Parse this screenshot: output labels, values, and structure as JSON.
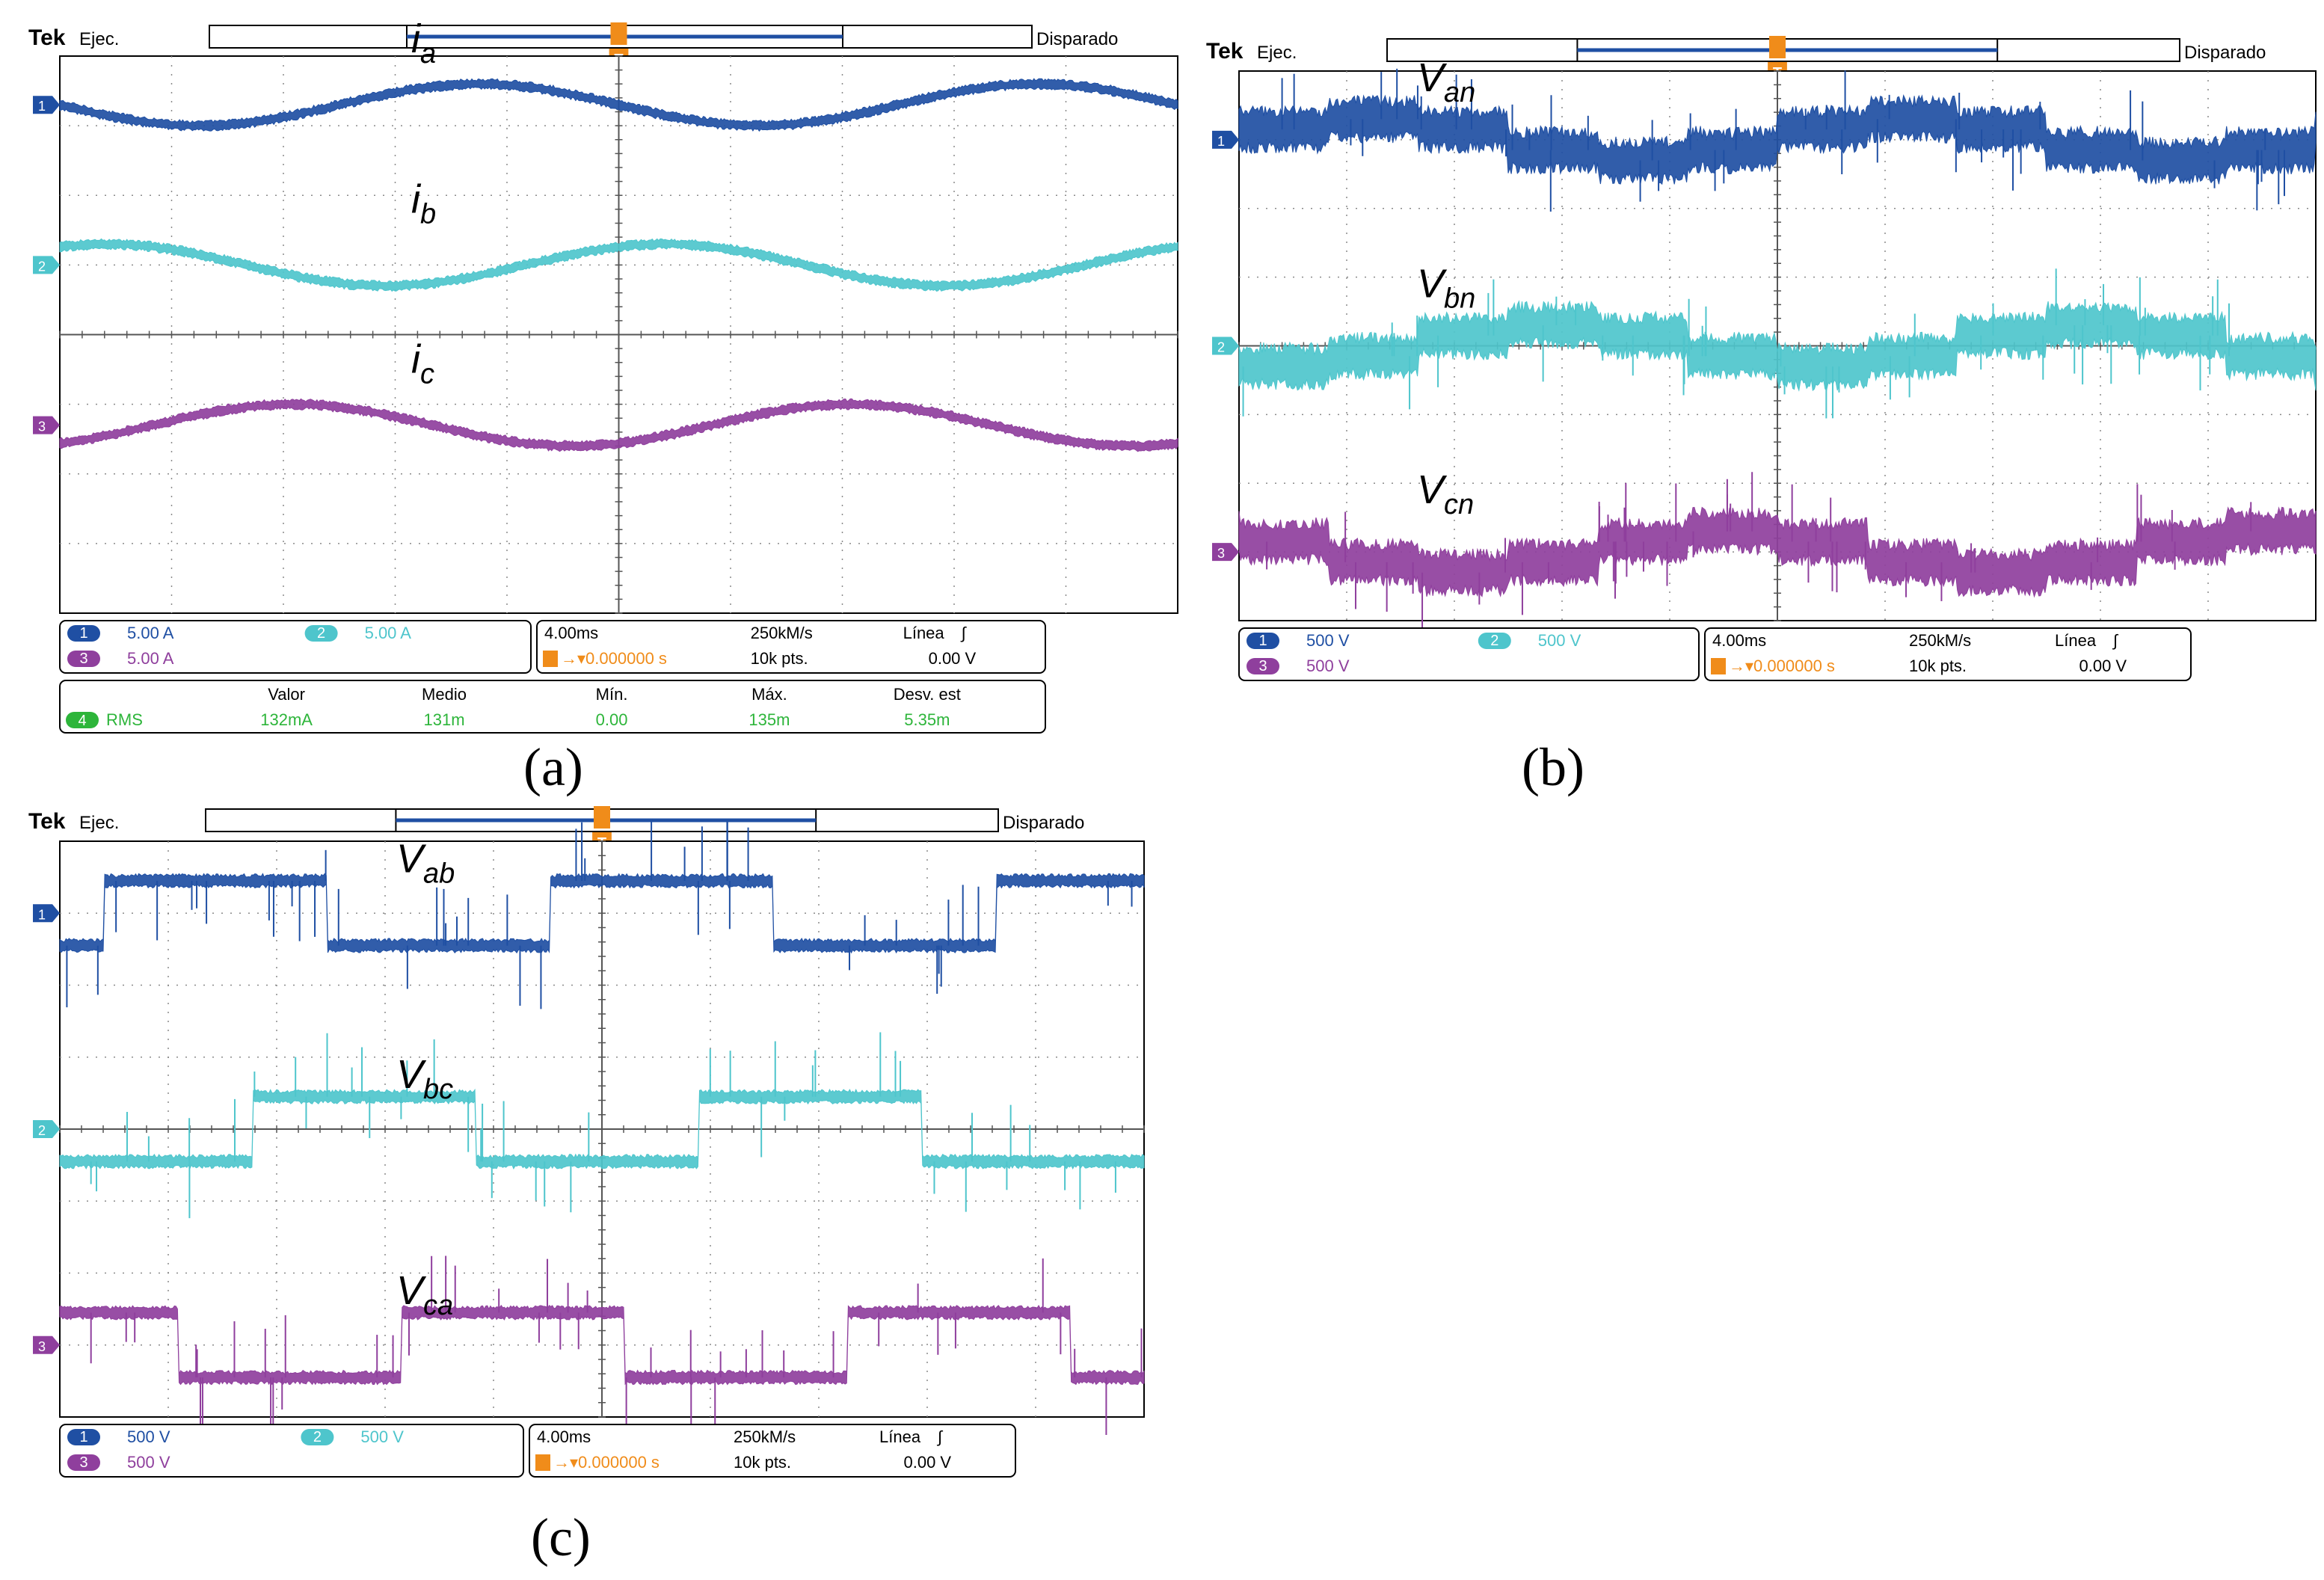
{
  "figure": {
    "captions": [
      "(a)",
      "(b)",
      "(c)"
    ]
  },
  "colors": {
    "ch1": "#1f4fa3",
    "ch2": "#4ec5cc",
    "ch3": "#8f3f9d",
    "ch4": "#2db53a",
    "trigger": "#f08c1a",
    "grid": "#8a8a8a",
    "frame": "#000000"
  },
  "chart_data": [
    {
      "id": "a",
      "type": "line",
      "title": "Tek Ejec.",
      "brand": "Tek",
      "run_state": "Ejec.",
      "trigger_state": "Disparado",
      "trigger_marker": "T",
      "grid": true,
      "divisions": {
        "x": 10,
        "y": 8
      },
      "series": [
        {
          "channel": "1",
          "name": "i_a",
          "label_main": "i",
          "label_sub": "a",
          "scale": "5.00 A",
          "shape": "sine",
          "cycles": 2.0,
          "phase_deg": 180,
          "amplitude_div": 0.3,
          "offset_div": 3.3,
          "noise_div": 0.08
        },
        {
          "channel": "2",
          "name": "i_b",
          "label_main": "i",
          "label_sub": "b",
          "scale": "5.00 A",
          "shape": "sine",
          "cycles": 2.0,
          "phase_deg": 60,
          "amplitude_div": 0.3,
          "offset_div": 1.0,
          "noise_div": 0.08
        },
        {
          "channel": "3",
          "name": "i_c",
          "label_main": "i",
          "label_sub": "c",
          "scale": "5.00 A",
          "shape": "sine",
          "cycles": 2.0,
          "phase_deg": -60,
          "amplitude_div": 0.3,
          "offset_div": -1.3,
          "noise_div": 0.08
        }
      ],
      "readout": {
        "channels": [
          {
            "num": "1",
            "value": "5.00 A"
          },
          {
            "num": "2",
            "value": "5.00 A"
          },
          {
            "num": "3",
            "value": "5.00 A"
          }
        ],
        "timebase": "4.00ms",
        "sample_rate": "250kM/s",
        "trigger_source": "Línea",
        "trigger_slope": "∫",
        "trigger_time": "0.000000 s",
        "record_length": "10k pts.",
        "trigger_level": "0.00 V"
      },
      "measurement": {
        "channel": "4",
        "type": "RMS",
        "headers": [
          "Valor",
          "Medio",
          "Mín.",
          "Máx.",
          "Desv. est"
        ],
        "values": [
          "132mA",
          "131m",
          "0.00",
          "135m",
          "5.35m"
        ]
      }
    },
    {
      "id": "b",
      "type": "line",
      "title": "Tek Ejec.",
      "brand": "Tek",
      "run_state": "Ejec.",
      "trigger_state": "Disparado",
      "trigger_marker": "T",
      "grid": true,
      "divisions": {
        "x": 10,
        "y": 8
      },
      "series": [
        {
          "channel": "1",
          "name": "V_an",
          "label_main": "V",
          "label_sub": "an",
          "scale": "500 V",
          "shape": "staircase",
          "cycles": 2.0,
          "phase_deg": 0,
          "amplitude_div": 0.3,
          "offset_div": 3.0,
          "noise_div": 0.35
        },
        {
          "channel": "2",
          "name": "V_bn",
          "label_main": "V",
          "label_sub": "bn",
          "scale": "500 V",
          "shape": "staircase",
          "cycles": 2.0,
          "phase_deg": -120,
          "amplitude_div": 0.3,
          "offset_div": 0.0,
          "noise_div": 0.35
        },
        {
          "channel": "3",
          "name": "V_cn",
          "label_main": "V",
          "label_sub": "cn",
          "scale": "500 V",
          "shape": "staircase",
          "cycles": 2.0,
          "phase_deg": 120,
          "amplitude_div": 0.3,
          "offset_div": -3.0,
          "noise_div": 0.35
        }
      ],
      "readout": {
        "channels": [
          {
            "num": "1",
            "value": "500 V"
          },
          {
            "num": "2",
            "value": "500 V"
          },
          {
            "num": "3",
            "value": "500 V"
          }
        ],
        "timebase": "4.00ms",
        "sample_rate": "250kM/s",
        "trigger_source": "Línea",
        "trigger_slope": "∫",
        "trigger_time": "0.000000 s",
        "record_length": "10k pts.",
        "trigger_level": "0.00 V"
      }
    },
    {
      "id": "c",
      "type": "line",
      "title": "Tek Ejec.",
      "brand": "Tek",
      "run_state": "Ejec.",
      "trigger_state": "Disparado",
      "trigger_marker": "T",
      "grid": true,
      "divisions": {
        "x": 10,
        "y": 8
      },
      "series": [
        {
          "channel": "1",
          "name": "V_ab",
          "label_main": "V",
          "label_sub": "ab",
          "scale": "500 V",
          "shape": "square",
          "cycles": 2.43,
          "phase_deg": -35,
          "amplitude_div": 0.45,
          "offset_div": 3.0,
          "noise_div": 0.1
        },
        {
          "channel": "2",
          "name": "V_bc",
          "label_main": "V",
          "label_sub": "bc",
          "scale": "500 V",
          "shape": "square",
          "cycles": 2.43,
          "phase_deg": -155,
          "amplitude_div": 0.45,
          "offset_div": 0.0,
          "noise_div": 0.1
        },
        {
          "channel": "3",
          "name": "V_ca",
          "label_main": "V",
          "label_sub": "ca",
          "scale": "500 V",
          "shape": "square",
          "cycles": 2.43,
          "phase_deg": 85,
          "amplitude_div": 0.45,
          "offset_div": -3.0,
          "noise_div": 0.1
        }
      ],
      "readout": {
        "channels": [
          {
            "num": "1",
            "value": "500 V"
          },
          {
            "num": "2",
            "value": "500 V"
          },
          {
            "num": "3",
            "value": "500 V"
          }
        ],
        "timebase": "4.00ms",
        "sample_rate": "250kM/s",
        "trigger_source": "Línea",
        "trigger_slope": "∫",
        "trigger_time": "0.000000 s",
        "record_length": "10k pts.",
        "trigger_level": "0.00 V"
      }
    }
  ]
}
